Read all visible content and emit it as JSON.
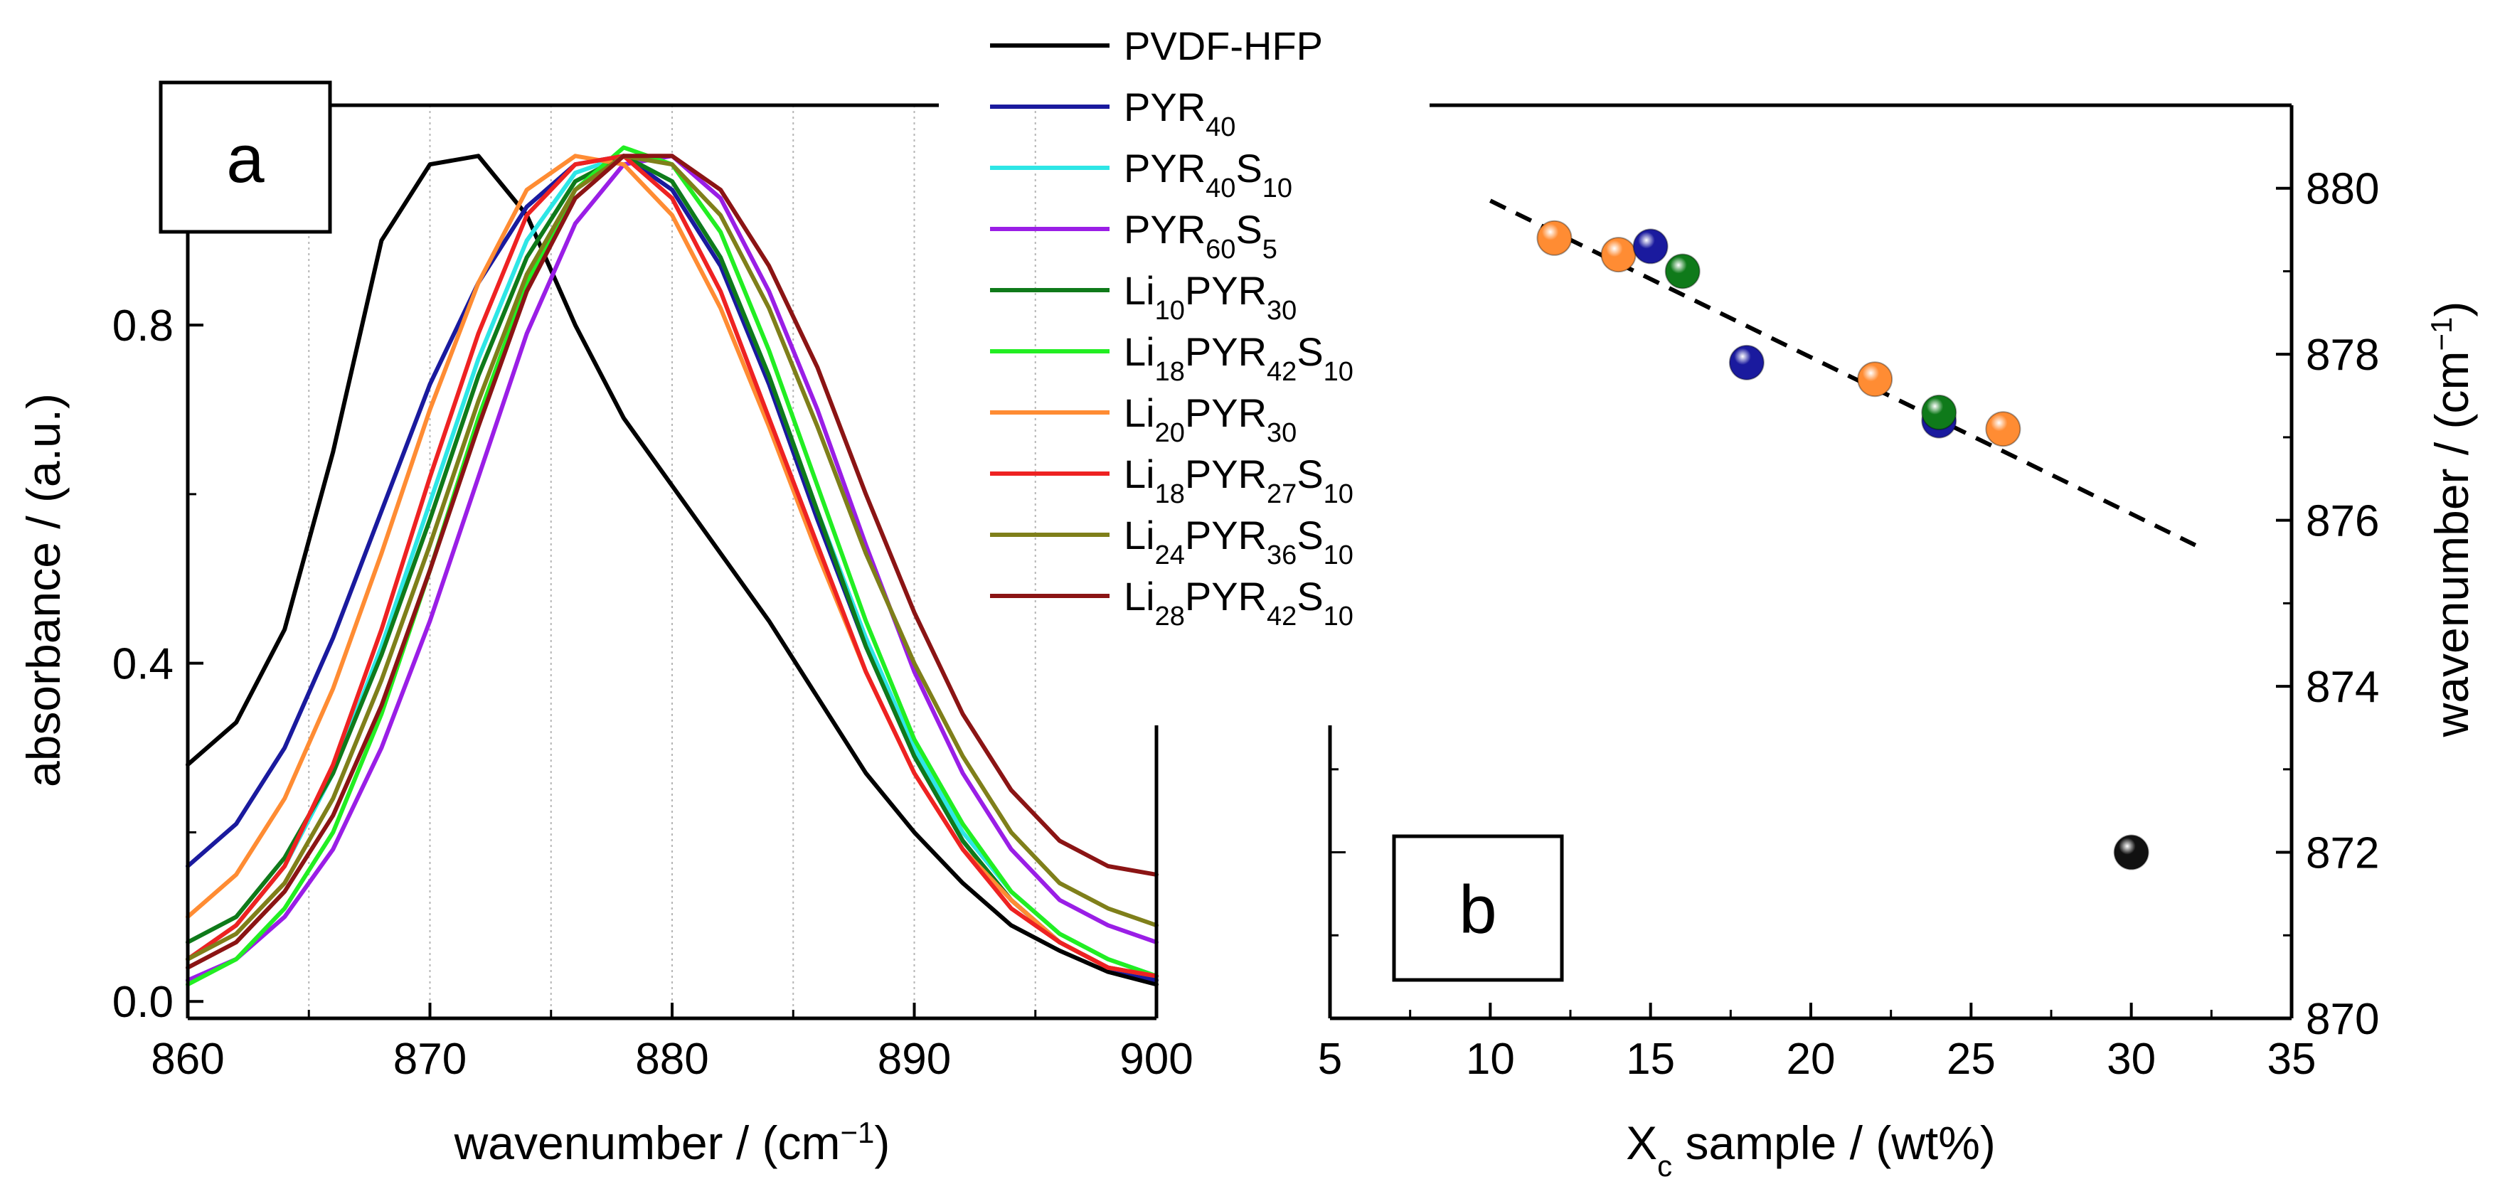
{
  "chart_data": [
    {
      "type": "line",
      "panel_label": "a",
      "xlabel": "wavenumber / (cm",
      "xlabel_sup": "−1",
      "xlabel_end": ")",
      "ylabel": "absorbance / (a.u.)",
      "xlim": [
        860,
        900
      ],
      "ylim": [
        -0.02,
        1.06
      ],
      "xticks": [
        860,
        870,
        880,
        890,
        900
      ],
      "xtick_labels": [
        "860",
        "870",
        "880",
        "890",
        "900"
      ],
      "yticks": [
        0.0,
        0.4,
        0.8
      ],
      "ytick_labels": [
        "0.0",
        "0.4",
        "0.8"
      ],
      "grid_x": [
        865,
        870,
        875,
        880,
        885,
        890,
        895
      ],
      "x": [
        860,
        862,
        864,
        866,
        868,
        870,
        872,
        874,
        876,
        878,
        880,
        882,
        884,
        886,
        888,
        890,
        892,
        894,
        896,
        898,
        900
      ],
      "series": [
        {
          "name": "PVDF-HFP",
          "color": "#000000",
          "values": [
            0.28,
            0.33,
            0.44,
            0.65,
            0.9,
            0.99,
            1.0,
            0.93,
            0.8,
            0.69,
            0.61,
            0.53,
            0.45,
            0.36,
            0.27,
            0.2,
            0.14,
            0.09,
            0.06,
            0.035,
            0.02
          ]
        },
        {
          "name": "PYR40",
          "color": "#1a1a9e",
          "values": [
            0.16,
            0.21,
            0.3,
            0.43,
            0.58,
            0.73,
            0.85,
            0.94,
            0.99,
            1.0,
            0.96,
            0.87,
            0.73,
            0.57,
            0.42,
            0.29,
            0.19,
            0.12,
            0.07,
            0.04,
            0.025
          ]
        },
        {
          "name": "PYR40S10",
          "color": "#2ee6e6",
          "values": [
            0.05,
            0.09,
            0.16,
            0.27,
            0.42,
            0.59,
            0.76,
            0.9,
            0.98,
            1.0,
            0.97,
            0.88,
            0.74,
            0.58,
            0.43,
            0.3,
            0.2,
            0.13,
            0.08,
            0.05,
            0.03
          ]
        },
        {
          "name": "PYR60S5",
          "color": "#9a1ee6",
          "values": [
            0.025,
            0.05,
            0.1,
            0.18,
            0.3,
            0.45,
            0.62,
            0.79,
            0.92,
            0.99,
            1.0,
            0.95,
            0.84,
            0.7,
            0.54,
            0.39,
            0.27,
            0.18,
            0.12,
            0.09,
            0.07
          ]
        },
        {
          "name": "Li10PYR30",
          "color": "#0f7a1a",
          "values": [
            0.07,
            0.1,
            0.17,
            0.27,
            0.41,
            0.57,
            0.74,
            0.88,
            0.97,
            1.0,
            0.97,
            0.88,
            0.74,
            0.58,
            0.42,
            0.29,
            0.19,
            0.12,
            0.07,
            0.04,
            0.03
          ]
        },
        {
          "name": "Li18PYR42S10",
          "color": "#22ee22",
          "values": [
            0.02,
            0.05,
            0.11,
            0.2,
            0.34,
            0.51,
            0.69,
            0.85,
            0.96,
            1.01,
            0.99,
            0.91,
            0.77,
            0.61,
            0.45,
            0.31,
            0.21,
            0.13,
            0.08,
            0.05,
            0.03
          ]
        },
        {
          "name": "Li20PYR30",
          "color": "#ff8c33",
          "values": [
            0.1,
            0.15,
            0.24,
            0.37,
            0.53,
            0.7,
            0.85,
            0.96,
            1.0,
            0.99,
            0.93,
            0.82,
            0.68,
            0.53,
            0.39,
            0.27,
            0.18,
            0.12,
            0.07,
            0.04,
            0.03
          ]
        },
        {
          "name": "Li18PYR27S10",
          "color": "#ee2222",
          "values": [
            0.05,
            0.09,
            0.16,
            0.28,
            0.44,
            0.62,
            0.79,
            0.93,
            0.99,
            1.0,
            0.95,
            0.84,
            0.69,
            0.54,
            0.39,
            0.27,
            0.18,
            0.11,
            0.07,
            0.04,
            0.03
          ]
        },
        {
          "name": "Li24PYR36S10",
          "color": "#7f7f1a",
          "values": [
            0.05,
            0.08,
            0.14,
            0.24,
            0.38,
            0.54,
            0.71,
            0.86,
            0.96,
            1.0,
            0.99,
            0.93,
            0.82,
            0.68,
            0.53,
            0.4,
            0.29,
            0.2,
            0.14,
            0.11,
            0.09
          ]
        },
        {
          "name": "Li28PYR42S10",
          "color": "#8b1414",
          "values": [
            0.04,
            0.07,
            0.13,
            0.22,
            0.35,
            0.51,
            0.68,
            0.84,
            0.95,
            1.0,
            1.0,
            0.96,
            0.87,
            0.75,
            0.6,
            0.46,
            0.34,
            0.25,
            0.19,
            0.16,
            0.15
          ]
        }
      ],
      "legend": [
        {
          "parts": [
            {
              "t": "PVDF-HFP"
            }
          ]
        },
        {
          "parts": [
            {
              "t": "PYR"
            },
            {
              "t": "40",
              "sub": true
            }
          ]
        },
        {
          "parts": [
            {
              "t": "PYR"
            },
            {
              "t": "40",
              "sub": true
            },
            {
              "t": "S"
            },
            {
              "t": "10",
              "sub": true
            }
          ]
        },
        {
          "parts": [
            {
              "t": "PYR"
            },
            {
              "t": "60",
              "sub": true
            },
            {
              "t": "S"
            },
            {
              "t": "5",
              "sub": true
            }
          ]
        },
        {
          "parts": [
            {
              "t": "Li"
            },
            {
              "t": "10",
              "sub": true
            },
            {
              "t": "PYR"
            },
            {
              "t": "30",
              "sub": true
            }
          ]
        },
        {
          "parts": [
            {
              "t": "Li"
            },
            {
              "t": "18",
              "sub": true
            },
            {
              "t": "PYR"
            },
            {
              "t": "42",
              "sub": true
            },
            {
              "t": "S"
            },
            {
              "t": "10",
              "sub": true
            }
          ]
        },
        {
          "parts": [
            {
              "t": "Li"
            },
            {
              "t": "20",
              "sub": true
            },
            {
              "t": "PYR"
            },
            {
              "t": "30",
              "sub": true
            }
          ]
        },
        {
          "parts": [
            {
              "t": "Li"
            },
            {
              "t": "18",
              "sub": true
            },
            {
              "t": "PYR"
            },
            {
              "t": "27",
              "sub": true
            },
            {
              "t": "S"
            },
            {
              "t": "10",
              "sub": true
            }
          ]
        },
        {
          "parts": [
            {
              "t": "Li"
            },
            {
              "t": "24",
              "sub": true
            },
            {
              "t": "PYR"
            },
            {
              "t": "36",
              "sub": true
            },
            {
              "t": "S"
            },
            {
              "t": "10",
              "sub": true
            }
          ]
        },
        {
          "parts": [
            {
              "t": "Li"
            },
            {
              "t": "28",
              "sub": true
            },
            {
              "t": "PYR"
            },
            {
              "t": "42",
              "sub": true
            },
            {
              "t": "S"
            },
            {
              "t": "10",
              "sub": true
            }
          ]
        }
      ]
    },
    {
      "type": "scatter",
      "panel_label": "b",
      "xlabel_pre": "X",
      "xlabel_sub": "c",
      "xlabel_post": " sample / (wt%)",
      "ylabel": "wavenumber / (cm",
      "ylabel_sup": "−1",
      "ylabel_end": ")",
      "xlim": [
        5,
        35
      ],
      "ylim": [
        870,
        881
      ],
      "xticks": [
        5,
        10,
        15,
        20,
        25,
        30,
        35
      ],
      "xtick_labels": [
        "5",
        "10",
        "15",
        "20",
        "25",
        "30",
        "35"
      ],
      "yticks": [
        870,
        872,
        874,
        876,
        878,
        880
      ],
      "ytick_labels": [
        "870",
        "872",
        "874",
        "876",
        "878",
        "880"
      ],
      "points": [
        {
          "x": 12,
          "y": 879.4,
          "color": "#ff8c33"
        },
        {
          "x": 14,
          "y": 879.2,
          "color": "#ff8c33"
        },
        {
          "x": 15,
          "y": 879.3,
          "color": "#1a1a9e"
        },
        {
          "x": 16,
          "y": 879.0,
          "color": "#0f7a1a"
        },
        {
          "x": 18,
          "y": 877.9,
          "color": "#1a1a9e"
        },
        {
          "x": 22,
          "y": 877.7,
          "color": "#ff8c33"
        },
        {
          "x": 24,
          "y": 877.2,
          "color": "#1a1a9e"
        },
        {
          "x": 24,
          "y": 877.3,
          "color": "#0f7a1a"
        },
        {
          "x": 26,
          "y": 877.1,
          "color": "#ff8c33"
        },
        {
          "x": 30,
          "y": 872.0,
          "color": "#111111"
        }
      ],
      "fit_line": {
        "x": [
          10,
          32
        ],
        "y": [
          879.85,
          875.7
        ],
        "style": "dashed"
      }
    }
  ]
}
